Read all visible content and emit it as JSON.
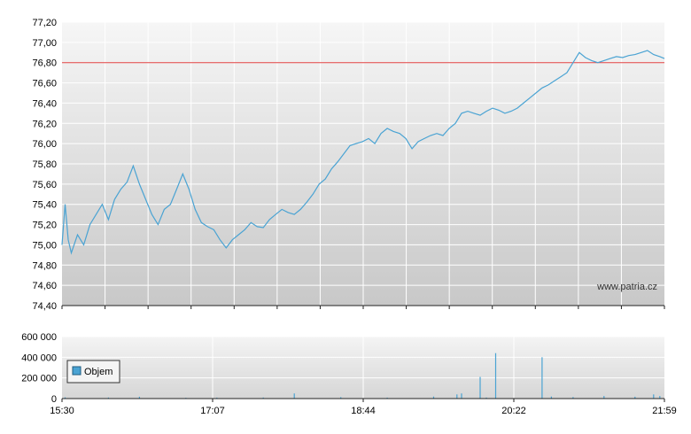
{
  "watermark": "www.patria.cz",
  "chart_data": [
    {
      "type": "line",
      "title": "",
      "xlabel": "",
      "ylabel": "",
      "ylim": [
        74.4,
        77.2
      ],
      "y_ticks": [
        "77,20",
        "77,00",
        "76,80",
        "76,60",
        "76,40",
        "76,20",
        "76,00",
        "75,80",
        "75,60",
        "75,40",
        "75,20",
        "75,00",
        "74,80",
        "74,60",
        "74,40"
      ],
      "x_ticks": [
        "15:30",
        "17:07",
        "18:44",
        "20:22",
        "21:59"
      ],
      "grid": true,
      "reference_line": 76.8,
      "colors": {
        "line": "#4aa3d3",
        "reference": "#e04040",
        "bg_top": "#f4f4f4",
        "bg_bottom": "#c9c9c9"
      },
      "series": [
        {
          "x": [
            "15:30",
            "15:32",
            "15:34",
            "15:36",
            "15:40",
            "15:44",
            "15:48",
            "15:52",
            "15:56",
            "16:00",
            "16:04",
            "16:08",
            "16:12",
            "16:16",
            "16:20",
            "16:24",
            "16:28",
            "16:32",
            "16:36",
            "16:40",
            "16:44",
            "16:48",
            "16:52",
            "16:56",
            "17:00",
            "17:04",
            "17:08",
            "17:12",
            "17:16",
            "17:20",
            "17:24",
            "17:28",
            "17:32",
            "17:36",
            "17:40",
            "17:44",
            "17:48",
            "17:52",
            "17:56",
            "18:00",
            "18:04",
            "18:08",
            "18:12",
            "18:16",
            "18:20",
            "18:24",
            "18:28",
            "18:32",
            "18:36",
            "18:40",
            "18:44",
            "18:48",
            "18:52",
            "18:56",
            "19:00",
            "19:04",
            "19:08",
            "19:12",
            "19:16",
            "19:20",
            "19:24",
            "19:28",
            "19:32",
            "19:36",
            "19:40",
            "19:44",
            "19:48",
            "19:52",
            "19:56",
            "20:00",
            "20:04",
            "20:08",
            "20:12",
            "20:16",
            "20:20",
            "20:24",
            "20:28",
            "20:32",
            "20:36",
            "20:40",
            "20:44",
            "20:48",
            "20:52",
            "20:56",
            "21:00",
            "21:04",
            "21:08",
            "21:12",
            "21:16",
            "21:20",
            "21:24",
            "21:28",
            "21:32",
            "21:36",
            "21:40",
            "21:44",
            "21:48",
            "21:52",
            "21:56",
            "21:59"
          ],
          "values": [
            75.0,
            75.4,
            75.05,
            74.92,
            75.1,
            75.0,
            75.2,
            75.3,
            75.4,
            75.25,
            75.45,
            75.55,
            75.62,
            75.78,
            75.6,
            75.45,
            75.3,
            75.2,
            75.35,
            75.4,
            75.55,
            75.7,
            75.55,
            75.35,
            75.22,
            75.18,
            75.15,
            75.05,
            74.97,
            75.05,
            75.1,
            75.15,
            75.22,
            75.18,
            75.17,
            75.25,
            75.3,
            75.35,
            75.32,
            75.3,
            75.35,
            75.42,
            75.5,
            75.6,
            75.65,
            75.75,
            75.82,
            75.9,
            75.98,
            76.0,
            76.02,
            76.05,
            76.0,
            76.1,
            76.15,
            76.12,
            76.1,
            76.05,
            75.95,
            76.02,
            76.05,
            76.08,
            76.1,
            76.08,
            76.15,
            76.2,
            76.3,
            76.32,
            76.3,
            76.28,
            76.32,
            76.35,
            76.33,
            76.3,
            76.32,
            76.35,
            76.4,
            76.45,
            76.5,
            76.55,
            76.58,
            76.62,
            76.66,
            76.7,
            76.8,
            76.9,
            76.85,
            76.82,
            76.8,
            76.82,
            76.84,
            76.86,
            76.85,
            76.87,
            76.88,
            76.9,
            76.92,
            76.88,
            76.86,
            76.84
          ]
        }
      ]
    },
    {
      "type": "bar",
      "title": "",
      "xlabel": "",
      "ylabel": "",
      "ylim": [
        0,
        600000
      ],
      "y_ticks": [
        "600 000",
        "400 000",
        "200 000",
        "0"
      ],
      "x_ticks": [
        "15:30",
        "17:07",
        "18:44",
        "20:22",
        "21:59"
      ],
      "legend": "Objem",
      "legend_position": "top-left",
      "colors": {
        "bar": "#4aa3d3"
      },
      "series": [
        {
          "name": "Objem",
          "x": [
            "15:32",
            "16:00",
            "16:20",
            "16:50",
            "17:10",
            "17:40",
            "18:00",
            "18:30",
            "19:00",
            "19:30",
            "19:45",
            "19:48",
            "20:00",
            "20:04",
            "20:10",
            "20:40",
            "20:46",
            "21:00",
            "21:20",
            "21:40",
            "21:52",
            "21:56"
          ],
          "values": [
            12000,
            10000,
            18000,
            8000,
            9000,
            10000,
            50000,
            14000,
            9000,
            20000,
            40000,
            50000,
            210000,
            10000,
            440000,
            400000,
            20000,
            15000,
            25000,
            18000,
            40000,
            25000
          ]
        }
      ]
    }
  ]
}
